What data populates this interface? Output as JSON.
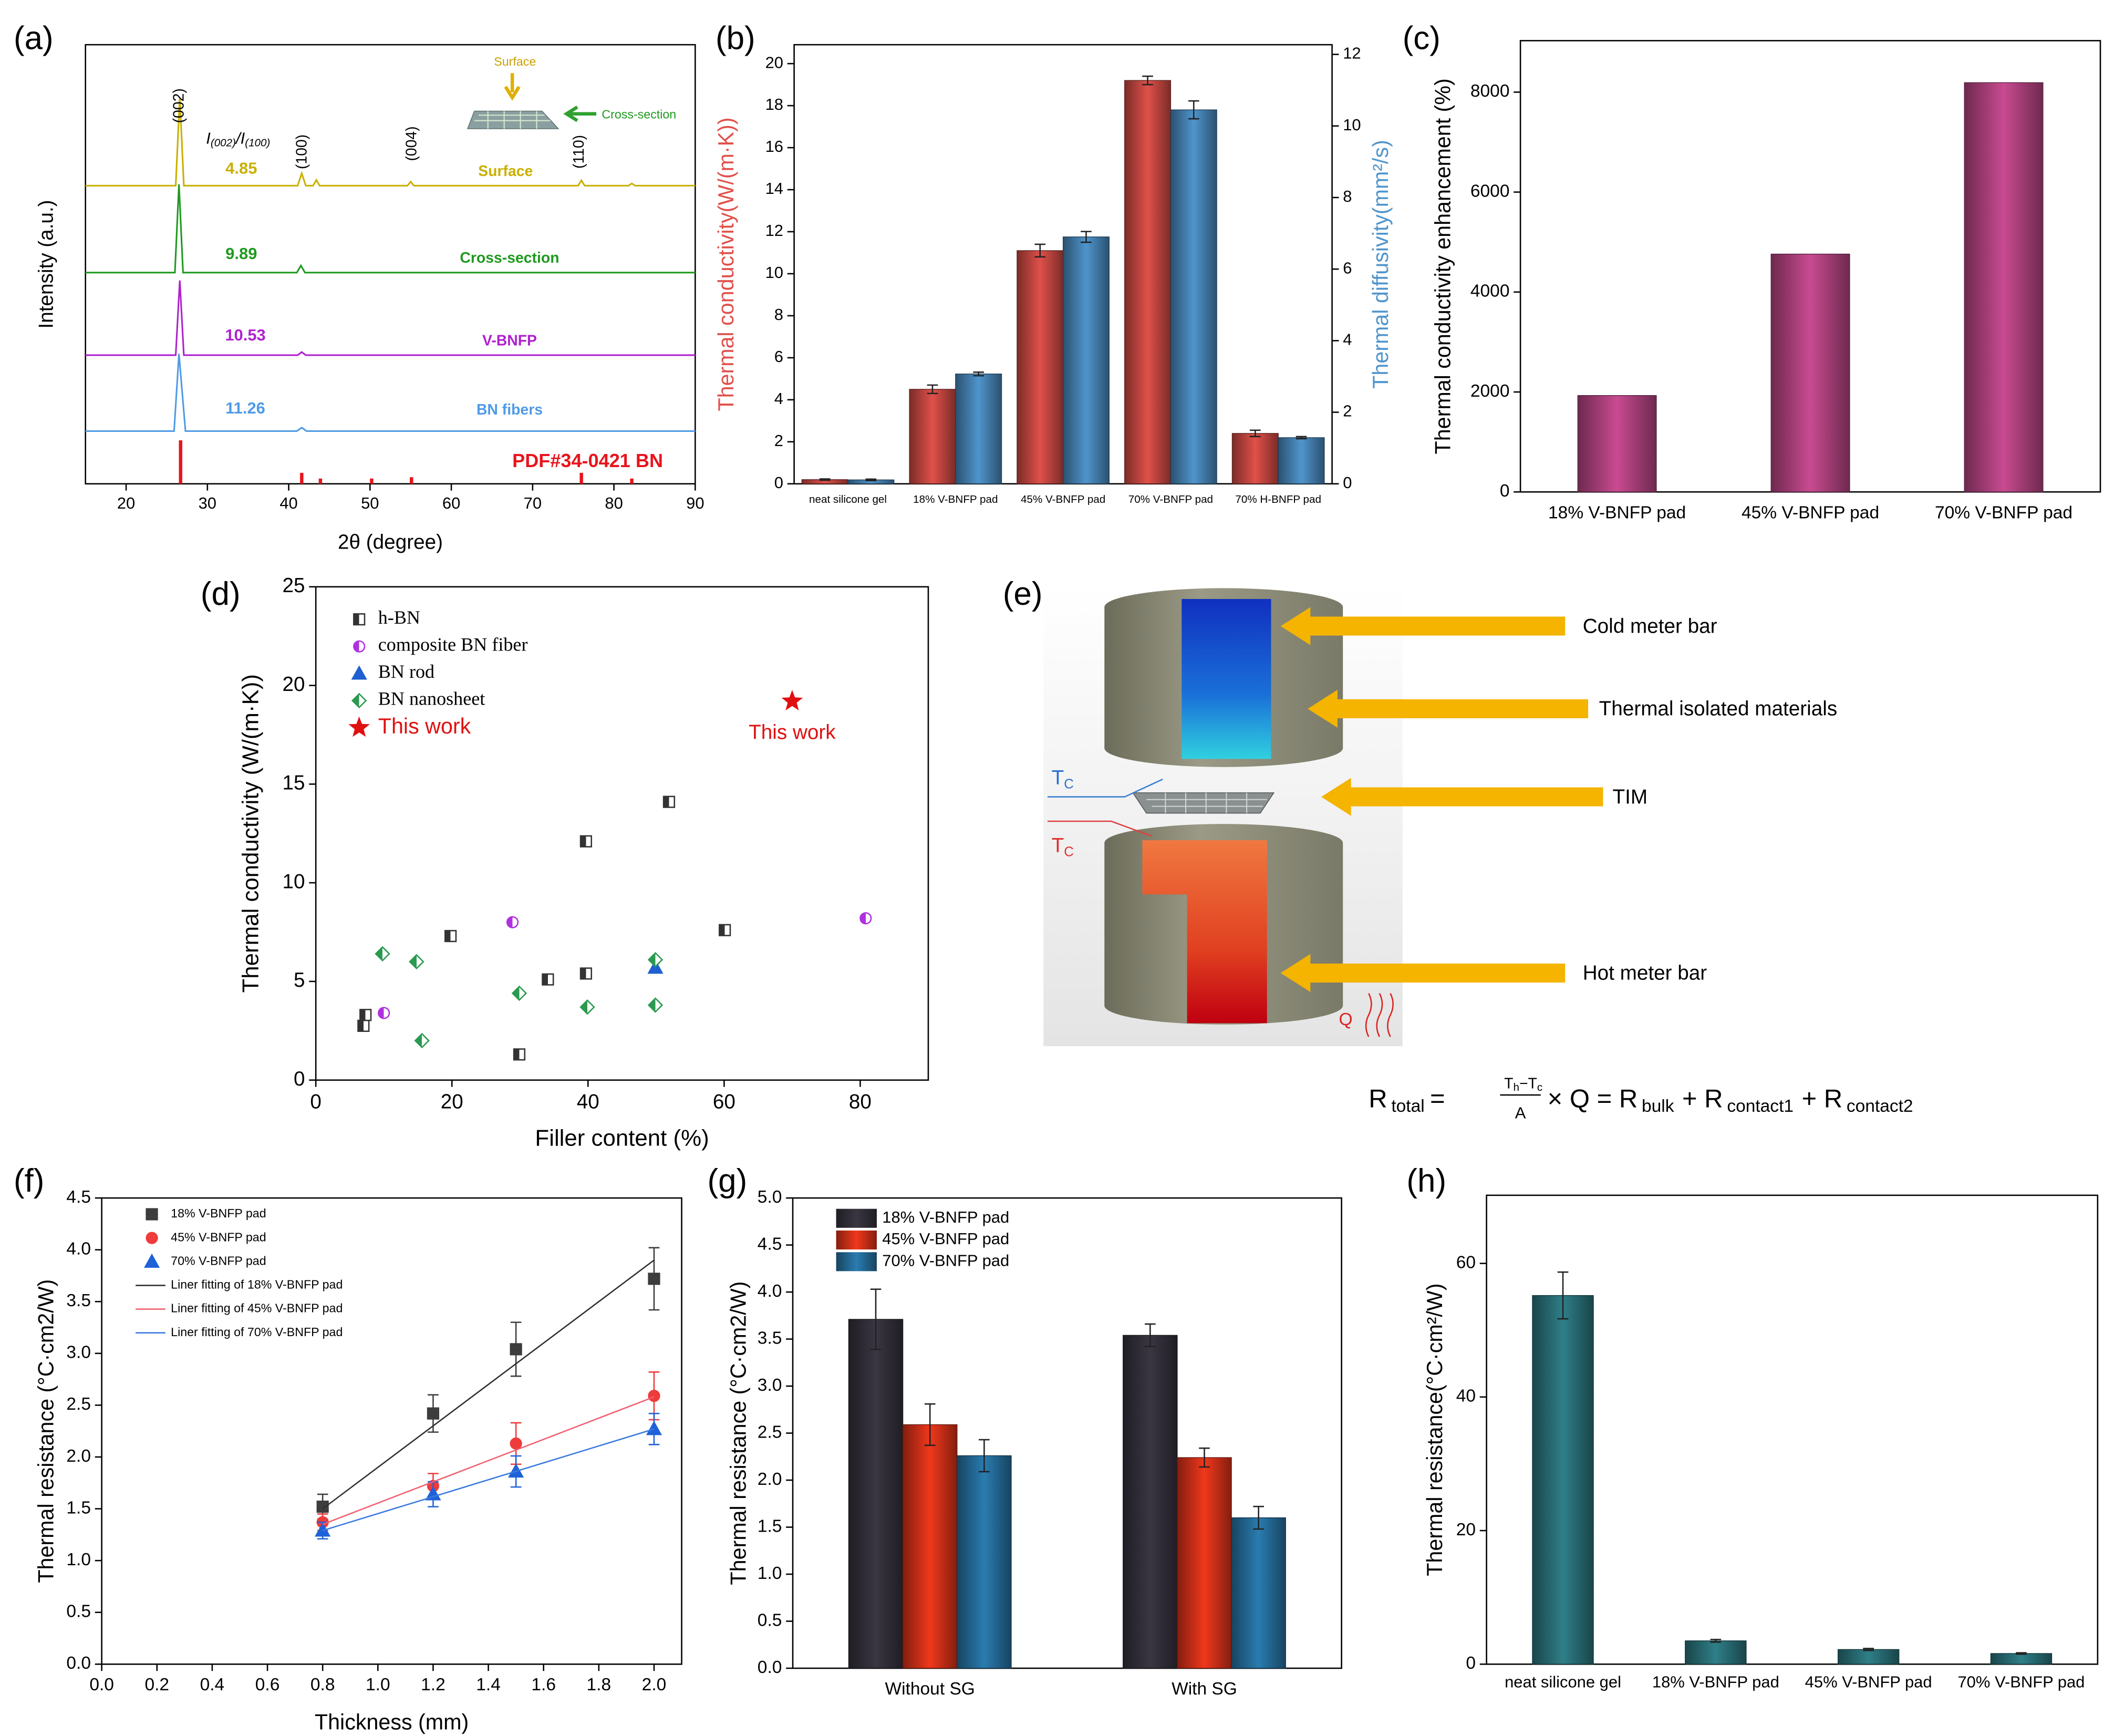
{
  "chart_data": [
    {
      "type": "spectra",
      "panel": "(a)",
      "xlabel": "2θ (degree)",
      "ylabel": "Intensity (a.u.)",
      "xlim": [
        15,
        90
      ],
      "xticks": [
        20,
        30,
        40,
        50,
        60,
        70,
        80,
        90
      ],
      "ylim": [
        0,
        100
      ],
      "ratio_label": [
        "I",
        "(002)",
        "/I",
        "(100)"
      ],
      "peaks": [
        {
          "label": "(002)",
          "x": 26.6
        },
        {
          "label": "(100)",
          "x": 41.7
        },
        {
          "label": "(004)",
          "x": 55.2
        },
        {
          "label": "(110)",
          "x": 75.8
        }
      ],
      "inset": [
        "Surface",
        "Cross-section"
      ],
      "series": [
        {
          "name": "Surface",
          "color": "#c9b000",
          "ratio": 4.85,
          "x": [
            15,
            26.1,
            26.6,
            27.1,
            41.1,
            41.6,
            42.1,
            43,
            43.4,
            43.8,
            54.6,
            55,
            55.4,
            75.6,
            76,
            76.4,
            81.8,
            82.2,
            82.6,
            90
          ],
          "values": [
            67.9,
            67.9,
            88,
            67.9,
            67.9,
            70.7,
            67.9,
            67.9,
            69.2,
            67.9,
            67.9,
            68.8,
            67.9,
            67.9,
            69.1,
            67.9,
            67.9,
            68.4,
            67.9,
            67.9
          ]
        },
        {
          "name": "Cross-section",
          "color": "#1f9a1f",
          "ratio": 9.89,
          "x": [
            15,
            26,
            26.5,
            27,
            41,
            41.5,
            42,
            90
          ],
          "values": [
            48.1,
            48.1,
            68.2,
            48.1,
            48.1,
            49.7,
            48.1,
            48.1
          ]
        },
        {
          "name": "V-BNFP",
          "color": "#b020d0",
          "ratio": 10.53,
          "x": [
            15,
            26.1,
            26.6,
            27.1,
            41.1,
            41.6,
            42.1,
            90
          ],
          "values": [
            29.3,
            29.3,
            46.3,
            29.3,
            29.3,
            30,
            29.3,
            29.3
          ]
        },
        {
          "name": "BN fibers",
          "color": "#4f9be6",
          "ratio": 11.26,
          "x": [
            15,
            25.9,
            26.5,
            27.3,
            41,
            41.6,
            42.2,
            90
          ],
          "values": [
            12,
            12,
            29.6,
            12,
            12,
            12.8,
            12,
            12
          ]
        },
        {
          "name": "PDF#34-0421 BN",
          "color": "#e8141c",
          "style": "sticks",
          "x": [
            26.7,
            41.6,
            43.9,
            50.2,
            55.1,
            76.0,
            82.2
          ],
          "values": [
            9.9,
            2.5,
            1.2,
            1.2,
            1.5,
            2.5,
            1.2
          ]
        }
      ]
    },
    {
      "type": "bar",
      "panel": "(b)",
      "ylabel": "Thermal conductivity(W/(m·K))",
      "y2label": "Thermal diffusivity(mm²/s)",
      "categories": [
        "neat silicone gel",
        "18% V-BNFP pad",
        "45% V-BNFP pad",
        "70% V-BNFP pad",
        "70% H-BNFP pad"
      ],
      "ylim": [
        0,
        20.9
      ],
      "yticks": [
        0,
        2,
        4,
        6,
        8,
        10,
        12,
        14,
        16,
        18,
        20
      ],
      "y2lim": [
        0,
        12.27
      ],
      "y2ticks": [
        0,
        2,
        4,
        6,
        8,
        10,
        12
      ],
      "series": [
        {
          "color": "#e0504a",
          "values": [
            0.2,
            4.5,
            11.1,
            19.2,
            2.4
          ],
          "errors": [
            0.03,
            0.2,
            0.3,
            0.2,
            0.15
          ]
        },
        {
          "color": "#4f95cc",
          "axis": "y2",
          "values": [
            0.11,
            3.07,
            6.9,
            10.45,
            1.29
          ],
          "errors": [
            0.02,
            0.05,
            0.15,
            0.25,
            0.03
          ]
        }
      ]
    },
    {
      "type": "bar",
      "panel": "(c)",
      "ylabel": "Thermal conductivity enhancement (%)",
      "categories": [
        "18% V-BNFP pad",
        "45% V-BNFP pad",
        "70% V-BNFP pad"
      ],
      "values": [
        1930,
        4760,
        8190
      ],
      "color": "#c84b91",
      "ylim": [
        0,
        9030
      ],
      "yticks": [
        0,
        2000,
        4000,
        6000,
        8000
      ]
    },
    {
      "type": "scatter",
      "panel": "(d)",
      "xlabel": "Filler content (%)",
      "ylabel": "Thermal conductivity (W/(m·K))",
      "xlim": [
        0,
        90
      ],
      "xticks": [
        0,
        20,
        40,
        60,
        80
      ],
      "ylim": [
        0,
        25
      ],
      "yticks": [
        0,
        5,
        10,
        15,
        20,
        25
      ],
      "legend": "top-left",
      "series": [
        {
          "name": "h-BN",
          "color": "#333333",
          "marker": "half-square",
          "x": [
            7,
            7.3,
            19.8,
            29.9,
            34.1,
            39.7,
            39.7,
            51.9,
            60.1
          ],
          "values": [
            2.75,
            3.3,
            7.3,
            1.3,
            5.1,
            5.4,
            12.1,
            14.1,
            7.6
          ]
        },
        {
          "name": "composite BN fiber",
          "color": "#b030e0",
          "marker": "half-circle",
          "x": [
            10,
            28.9,
            80.8
          ],
          "values": [
            3.4,
            8.0,
            8.2
          ]
        },
        {
          "name": "BN rod",
          "color": "#1f5fd0",
          "marker": "triangle",
          "x": [
            49.9
          ],
          "values": [
            5.7
          ]
        },
        {
          "name": "BN nanosheet",
          "color": "#2a9a50",
          "marker": "diamond",
          "x": [
            9.8,
            14.8,
            15.6,
            29.9,
            39.9,
            49.9,
            49.9
          ],
          "values": [
            6.4,
            6.0,
            2.0,
            4.4,
            3.7,
            6.1,
            3.8
          ]
        },
        {
          "name": "This work",
          "color": "#e01010",
          "label_color": "#e01010",
          "marker": "star",
          "annotation": "This work",
          "x": [
            70
          ],
          "values": [
            19.2
          ]
        }
      ]
    },
    {
      "type": "scatter",
      "panel": "(f)",
      "xlabel": "Thickness (mm)",
      "ylabel": "Thermal resistance (°C·cm2/W)",
      "xlim": [
        0,
        2.1
      ],
      "xticks": [
        {
          "value": 0,
          "label": "0.0"
        },
        0.2,
        0.4,
        0.6,
        0.8,
        {
          "value": 1,
          "label": "1.0"
        },
        1.2,
        1.4,
        1.6,
        1.8,
        {
          "value": 2,
          "label": "2.0"
        }
      ],
      "ylim": [
        0,
        4.5
      ],
      "yticks": [
        {
          "value": 0,
          "label": "0.0"
        },
        0.5,
        {
          "value": 1,
          "label": "1.0"
        },
        1.5,
        {
          "value": 2,
          "label": "2.0"
        },
        2.5,
        {
          "value": 3,
          "label": "3.0"
        },
        3.5,
        {
          "value": 4,
          "label": "4.0"
        },
        4.5
      ],
      "legend": "top-left",
      "series": [
        {
          "name": "18% V-BNFP pad",
          "color": "#3d3d3d",
          "marker": "square",
          "x": [
            0.8,
            1.2,
            1.5,
            2.0
          ],
          "values": [
            1.52,
            2.42,
            3.04,
            3.72
          ],
          "errors": [
            0.12,
            0.18,
            0.26,
            0.3
          ]
        },
        {
          "name": "45% V-BNFP pad",
          "color": "#ee3b3b",
          "marker": "circle",
          "x": [
            0.8,
            1.2,
            1.5,
            2.0
          ],
          "values": [
            1.37,
            1.72,
            2.13,
            2.59
          ],
          "errors": [
            0.08,
            0.12,
            0.2,
            0.23
          ]
        },
        {
          "name": "70% V-BNFP pad",
          "color": "#1f62d8",
          "marker": "triangle",
          "x": [
            0.8,
            1.2,
            1.5,
            2.0
          ],
          "values": [
            1.29,
            1.64,
            1.86,
            2.27
          ],
          "errors": [
            0.08,
            0.12,
            0.15,
            0.15
          ]
        }
      ],
      "fits": [
        {
          "name": "Liner fitting of 18% V-BNFP pad",
          "color": "#303030",
          "x": [
            0.8,
            2.0
          ],
          "values": [
            1.5,
            3.9
          ]
        },
        {
          "name": "Liner fitting of 45% V-BNFP pad",
          "color": "#f06070",
          "x": [
            0.8,
            2.0
          ],
          "values": [
            1.35,
            2.58
          ]
        },
        {
          "name": "Liner fitting of 70% V-BNFP pad",
          "color": "#3a7ae0",
          "x": [
            0.8,
            2.0
          ],
          "values": [
            1.29,
            2.27
          ]
        }
      ]
    },
    {
      "type": "bar",
      "panel": "(g)",
      "ylabel": "Thermal resistance (°C·cm2/W)",
      "categories": [
        "Without SG",
        "With SG"
      ],
      "legend": "top-left",
      "ylim": [
        0,
        5
      ],
      "yticks": [
        {
          "value": 0,
          "label": "0.0"
        },
        0.5,
        {
          "value": 1,
          "label": "1.0"
        },
        1.5,
        {
          "value": 2,
          "label": "2.0"
        },
        2.5,
        {
          "value": 3,
          "label": "3.0"
        },
        3.5,
        {
          "value": 4,
          "label": "4.0"
        },
        4.5,
        {
          "value": 5,
          "label": "5.0"
        }
      ],
      "series": [
        {
          "name": "18% V-BNFP pad",
          "color": "#3a3642",
          "values": [
            3.71,
            3.54
          ],
          "errors": [
            0.32,
            0.12
          ]
        },
        {
          "name": "45% V-BNFP pad",
          "color": "#f0381c",
          "values": [
            2.59,
            2.24
          ],
          "errors": [
            0.22,
            0.1
          ]
        },
        {
          "name": "70% V-BNFP pad",
          "color": "#2a7cb0",
          "values": [
            2.26,
            1.6
          ],
          "errors": [
            0.17,
            0.12
          ]
        }
      ]
    },
    {
      "type": "bar",
      "panel": "(h)",
      "ylabel": "Thermal resistance(°C·cm²/W)",
      "categories": [
        "neat silicone gel",
        "18% V-BNFP pad",
        "45% V-BNFP pad",
        "70% V-BNFP pad"
      ],
      "values": [
        55.2,
        3.5,
        2.2,
        1.6
      ],
      "errors": [
        3.5,
        0.2,
        0.15,
        0.1
      ],
      "color": "#2f7f88",
      "ylim": [
        0,
        70.2
      ],
      "yticks": [
        0,
        20,
        40,
        60
      ]
    }
  ],
  "diagram": {
    "panel": "(e)",
    "labels": [
      "Cold meter bar",
      "Thermal isolated materials",
      "TIM",
      "Hot meter bar"
    ],
    "temps": [
      {
        "main": "T",
        "sub": "C"
      },
      {
        "main": "T",
        "sub": "C"
      }
    ],
    "heat": "Q",
    "equation": [
      "R",
      "total",
      "=",
      "T",
      "h",
      "−T",
      "c",
      "A",
      "× Q = R",
      "bulk",
      "+ R",
      "contact1",
      "+ R",
      "contact2"
    ]
  }
}
